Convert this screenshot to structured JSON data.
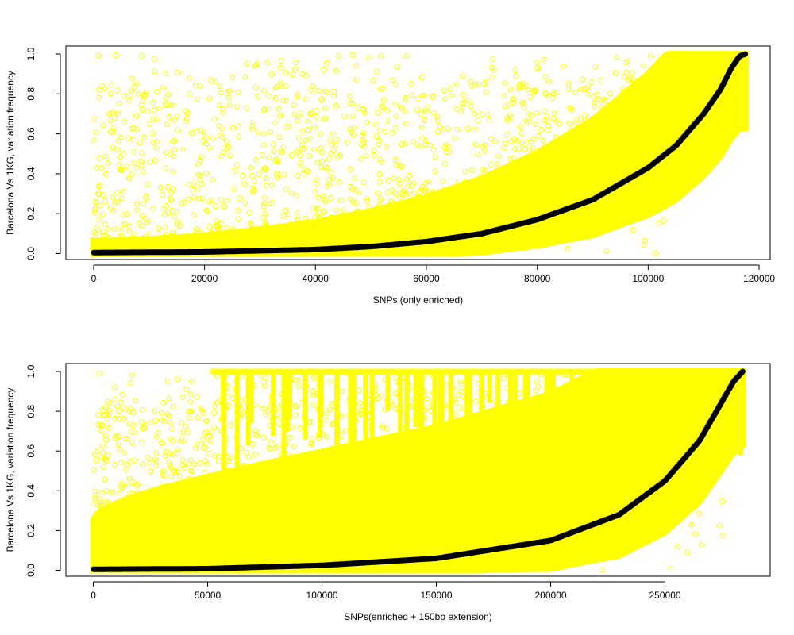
{
  "chart_data": [
    {
      "type": "scatter",
      "title": "",
      "xlabel": "SNPs (only enriched)",
      "ylabel": "Barcelona Vs 1KG, variation frequency",
      "xlim": [
        -5000,
        122000
      ],
      "ylim": [
        -0.03,
        1.04
      ],
      "xticks": [
        0,
        20000,
        40000,
        60000,
        80000,
        100000,
        120000
      ],
      "yticks": [
        0.0,
        0.2,
        0.4,
        0.6,
        0.8,
        1.0
      ],
      "xtick_labels": [
        "0",
        "20000",
        "40000",
        "60000",
        "80000",
        "100000",
        "120000"
      ],
      "ytick_labels": [
        "0.0",
        "0.2",
        "0.4",
        "0.6",
        "0.8",
        "1.0"
      ],
      "n_points": 117500,
      "series": [
        {
          "name": "scatter",
          "color": "#ffff00",
          "marker": "open-circle",
          "description": "per-SNP frequency, dense band above and below sorted curve"
        },
        {
          "name": "sorted",
          "color": "#000000",
          "marker": "filled-circle",
          "x": [
            0,
            20000,
            40000,
            50000,
            60000,
            70000,
            80000,
            90000,
            100000,
            105000,
            110000,
            113000,
            115000,
            116500,
            117500
          ],
          "y": [
            0.005,
            0.008,
            0.02,
            0.035,
            0.06,
            0.1,
            0.17,
            0.27,
            0.43,
            0.54,
            0.7,
            0.82,
            0.93,
            0.99,
            1.0
          ]
        }
      ]
    },
    {
      "type": "scatter",
      "title": "",
      "xlabel": "SNPs(enriched + 150bp extension)",
      "ylabel": "Barcelona Vs 1KG, variation frequency",
      "xlim": [
        -12000,
        296000
      ],
      "ylim": [
        -0.03,
        1.04
      ],
      "xticks": [
        0,
        50000,
        100000,
        150000,
        200000,
        250000
      ],
      "yticks": [
        0.0,
        0.2,
        0.4,
        0.6,
        0.8,
        1.0
      ],
      "xtick_labels": [
        "0",
        "50000",
        "100000",
        "150000",
        "200000",
        "250000"
      ],
      "ytick_labels": [
        "0.0",
        "0.2",
        "0.4",
        "0.6",
        "0.8",
        "1.0"
      ],
      "n_points": 284000,
      "series": [
        {
          "name": "scatter",
          "color": "#ffff00",
          "marker": "open-circle",
          "description": "per-SNP frequency, very dense yellow cloud with vertical streaks at 1.0"
        },
        {
          "name": "sorted",
          "color": "#000000",
          "marker": "filled-circle",
          "x": [
            0,
            50000,
            100000,
            150000,
            200000,
            230000,
            250000,
            265000,
            275000,
            280000,
            284000
          ],
          "y": [
            0.005,
            0.008,
            0.025,
            0.06,
            0.15,
            0.28,
            0.45,
            0.65,
            0.85,
            0.95,
            1.0
          ]
        }
      ]
    }
  ]
}
